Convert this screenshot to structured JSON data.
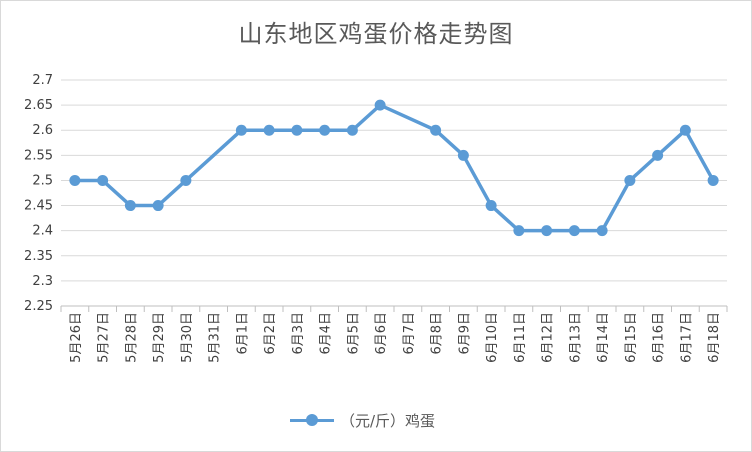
{
  "chart_data": {
    "type": "line",
    "title": "山东地区鸡蛋价格走势图",
    "categories": [
      "5月26日",
      "5月27日",
      "5月28日",
      "5月29日",
      "5月30日",
      "5月31日",
      "6月1日",
      "6月2日",
      "6月3日",
      "6月4日",
      "6月5日",
      "6月6日",
      "6月7日",
      "6月8日",
      "6月9日",
      "6月10日",
      "6月11日",
      "6月12日",
      "6月13日",
      "6月14日",
      "6月15日",
      "6月16日",
      "6月17日",
      "6月18日"
    ],
    "series": [
      {
        "name": "（元/斤）鸡蛋",
        "color": "#5b9bd5",
        "points": [
          {
            "x": "5月26日",
            "y": 2.5
          },
          {
            "x": "5月27日",
            "y": 2.5
          },
          {
            "x": "5月28日",
            "y": 2.45
          },
          {
            "x": "5月29日",
            "y": 2.45
          },
          {
            "x": "5月30日",
            "y": 2.5
          },
          {
            "x": "6月1日",
            "y": 2.6
          },
          {
            "x": "6月2日",
            "y": 2.6
          },
          {
            "x": "6月3日",
            "y": 2.6
          },
          {
            "x": "6月4日",
            "y": 2.6
          },
          {
            "x": "6月5日",
            "y": 2.6
          },
          {
            "x": "6月6日",
            "y": 2.65
          },
          {
            "x": "6月8日",
            "y": 2.6
          },
          {
            "x": "6月9日",
            "y": 2.55
          },
          {
            "x": "6月10日",
            "y": 2.45
          },
          {
            "x": "6月11日",
            "y": 2.4
          },
          {
            "x": "6月12日",
            "y": 2.4
          },
          {
            "x": "6月13日",
            "y": 2.4
          },
          {
            "x": "6月14日",
            "y": 2.4
          },
          {
            "x": "6月15日",
            "y": 2.5
          },
          {
            "x": "6月16日",
            "y": 2.55
          },
          {
            "x": "6月17日",
            "y": 2.6
          },
          {
            "x": "6月18日",
            "y": 2.5
          }
        ]
      }
    ],
    "yticks": [
      "2.25",
      "2.3",
      "2.35",
      "2.4",
      "2.45",
      "2.5",
      "2.55",
      "2.6",
      "2.65",
      "2.7"
    ],
    "ylim": [
      2.25,
      2.7
    ],
    "grid": true,
    "legend": "bottom"
  }
}
